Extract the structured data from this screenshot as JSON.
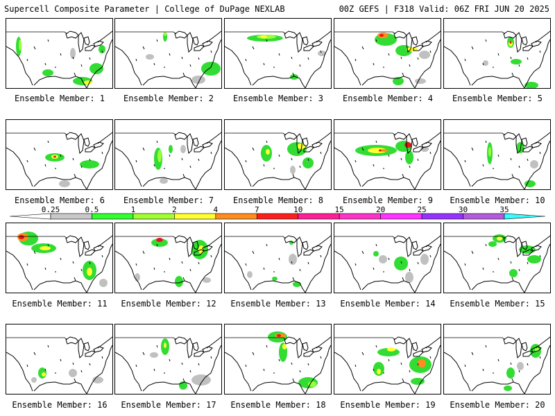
{
  "header": {
    "left": "Supercell Composite Parameter | College of DuPage NEXLAB",
    "right": "00Z GEFS | F318 Valid: 06Z FRI JUN 20 2025"
  },
  "members": [
    {
      "label": "Ensemble Member: 1"
    },
    {
      "label": "Ensemble Member: 2"
    },
    {
      "label": "Ensemble Member: 3"
    },
    {
      "label": "Ensemble Member: 4"
    },
    {
      "label": "Ensemble Member: 5"
    },
    {
      "label": "Ensemble Member: 6"
    },
    {
      "label": "Ensemble Member: 7"
    },
    {
      "label": "Ensemble Member: 8"
    },
    {
      "label": "Ensemble Member: 9"
    },
    {
      "label": "Ensemble Member: 10"
    },
    {
      "label": "Ensemble Member: 11"
    },
    {
      "label": "Ensemble Member: 12"
    },
    {
      "label": "Ensemble Member: 13"
    },
    {
      "label": "Ensemble Member: 14"
    },
    {
      "label": "Ensemble Member: 15"
    },
    {
      "label": "Ensemble Member: 16"
    },
    {
      "label": "Ensemble Member: 17"
    },
    {
      "label": "Ensemble Member: 18"
    },
    {
      "label": "Ensemble Member: 19"
    },
    {
      "label": "Ensemble Member: 20"
    }
  ],
  "colorbar": {
    "ticks": [
      "0.25",
      "0.5",
      "1",
      "2",
      "4",
      "7",
      "10",
      "15",
      "20",
      "25",
      "30",
      "35"
    ],
    "colors": [
      "#c8c8c8",
      "#32ff32",
      "#a0ff32",
      "#ffff32",
      "#ff8c1e",
      "#ff1e1e",
      "#ff1e96",
      "#ff32c8",
      "#ff32ff",
      "#9632ff",
      "#b45adc",
      "#32ffff"
    ]
  },
  "map_colors": {
    "land": "#ffffff",
    "coast": "#000000",
    "low": "#c0c0c0",
    "green": "#32dc32",
    "lightgreen": "#9bff3c",
    "yellow": "#ffff32",
    "orange": "#ff8c1e",
    "red": "#e6141e"
  }
}
